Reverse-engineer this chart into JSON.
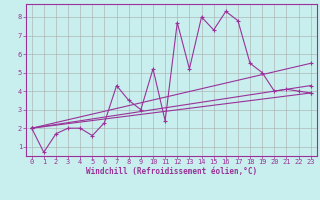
{
  "xlabel": "Windchill (Refroidissement éolien,°C)",
  "bg_color": "#c8eeee",
  "line_color": "#993399",
  "grid_color": "#aaaaaa",
  "xlim": [
    -0.5,
    23.5
  ],
  "ylim": [
    0.5,
    8.7
  ],
  "xticks": [
    0,
    1,
    2,
    3,
    4,
    5,
    6,
    7,
    8,
    9,
    10,
    11,
    12,
    13,
    14,
    15,
    16,
    17,
    18,
    19,
    20,
    21,
    22,
    23
  ],
  "yticks": [
    1,
    2,
    3,
    4,
    5,
    6,
    7,
    8
  ],
  "series1_x": [
    0,
    1,
    2,
    3,
    4,
    5,
    6,
    7,
    8,
    9,
    10,
    11,
    12,
    13,
    14,
    15,
    16,
    17,
    18,
    19,
    20,
    21,
    22,
    23
  ],
  "series1_y": [
    2.0,
    0.7,
    1.7,
    2.0,
    2.0,
    1.6,
    2.3,
    4.3,
    3.5,
    3.0,
    5.2,
    2.4,
    7.7,
    5.2,
    8.0,
    7.3,
    8.3,
    7.8,
    5.5,
    5.0,
    4.0,
    4.1,
    4.0,
    3.9
  ],
  "series2_x": [
    0,
    23
  ],
  "series2_y": [
    2.0,
    3.9
  ],
  "series3_x": [
    0,
    23
  ],
  "series3_y": [
    2.0,
    4.3
  ],
  "series4_x": [
    0,
    23
  ],
  "series4_y": [
    2.0,
    5.5
  ],
  "tick_fontsize": 5,
  "label_fontsize": 5.5
}
